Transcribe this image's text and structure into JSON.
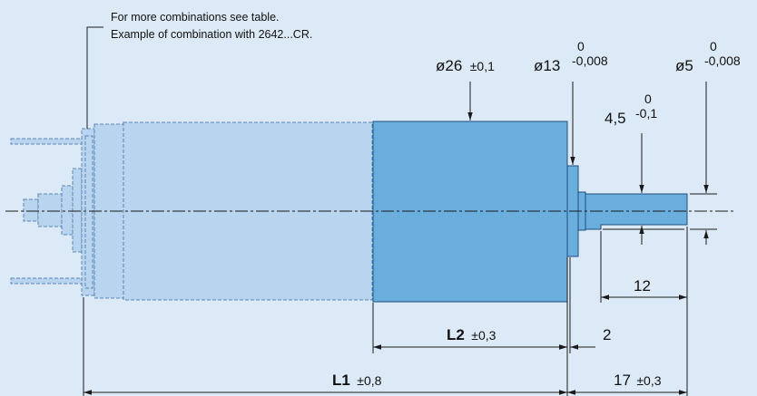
{
  "notes": {
    "line1": "For more combinations see table.",
    "line2": "Example of combination with 2642...CR."
  },
  "dimensions": {
    "d26": {
      "main": "ø26",
      "tol": "±0,1"
    },
    "d13": {
      "main": "ø13",
      "upper": "0",
      "lower": "-0,008"
    },
    "d5": {
      "main": "ø5",
      "upper": "0",
      "lower": "-0,008"
    },
    "flat": {
      "main": "4,5",
      "upper": "0",
      "lower": "-0,1"
    },
    "len12": {
      "main": "12"
    },
    "len2": {
      "main": "2"
    },
    "l2": {
      "main": "L2",
      "tol": "±0,3"
    },
    "l1": {
      "main": "L1",
      "tol": "±0,8"
    },
    "len17": {
      "main": "17",
      "tol": "±0,3"
    }
  },
  "colors": {
    "background": "#dce9f6",
    "motor_body": "#6aaede",
    "combination_body": "#b8d4ee",
    "outline": "#1f4f7e"
  }
}
